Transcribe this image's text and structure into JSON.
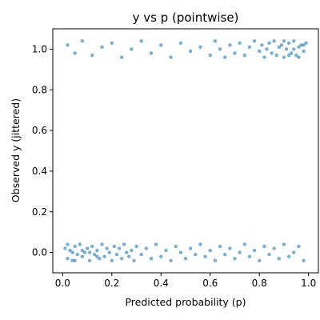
{
  "chart_data": {
    "type": "scatter",
    "title": "y vs p (pointwise)",
    "xlabel": "Predicted probability (p)",
    "ylabel": "Observed y (jittered)",
    "xlim": [
      -0.04,
      1.04
    ],
    "ylim": [
      -0.1,
      1.1
    ],
    "xticks": [
      "0.0",
      "0.2",
      "0.4",
      "0.6",
      "0.8",
      "1.0"
    ],
    "yticks": [
      "0.0",
      "0.2",
      "0.4",
      "0.6",
      "0.8",
      "1.0"
    ],
    "grid": false,
    "marker_color": "#1f77b4",
    "marker_alpha": 0.6,
    "observed_levels": [
      0,
      1
    ],
    "jitter_range": 0.05,
    "points_y0": [
      [
        0.01,
        0.02
      ],
      [
        0.02,
        -0.03
      ],
      [
        0.03,
        0.01
      ],
      [
        0.04,
        -0.04
      ],
      [
        0.05,
        0.03
      ],
      [
        0.06,
        -0.01
      ],
      [
        0.07,
        0.04
      ],
      [
        0.08,
        -0.02
      ],
      [
        0.09,
        0.0
      ],
      [
        0.1,
        0.02
      ],
      [
        0.11,
        -0.04
      ],
      [
        0.12,
        0.03
      ],
      [
        0.13,
        -0.01
      ],
      [
        0.14,
        0.01
      ],
      [
        0.15,
        -0.03
      ],
      [
        0.16,
        0.04
      ],
      [
        0.17,
        -0.02
      ],
      [
        0.18,
        0.02
      ],
      [
        0.19,
        0.0
      ],
      [
        0.2,
        -0.04
      ],
      [
        0.21,
        0.03
      ],
      [
        0.22,
        -0.01
      ],
      [
        0.23,
        0.02
      ],
      [
        0.24,
        -0.03
      ],
      [
        0.25,
        0.04
      ],
      [
        0.26,
        0.0
      ],
      [
        0.27,
        -0.02
      ],
      [
        0.28,
        0.01
      ],
      [
        0.29,
        -0.04
      ],
      [
        0.3,
        0.03
      ],
      [
        0.32,
        -0.01
      ],
      [
        0.34,
        0.02
      ],
      [
        0.36,
        -0.03
      ],
      [
        0.38,
        0.04
      ],
      [
        0.4,
        -0.02
      ],
      [
        0.42,
        0.01
      ],
      [
        0.44,
        -0.04
      ],
      [
        0.46,
        0.03
      ],
      [
        0.48,
        0.0
      ],
      [
        0.5,
        -0.03
      ],
      [
        0.52,
        0.02
      ],
      [
        0.54,
        -0.01
      ],
      [
        0.56,
        0.04
      ],
      [
        0.58,
        -0.02
      ],
      [
        0.6,
        0.01
      ],
      [
        0.62,
        -0.04
      ],
      [
        0.64,
        0.03
      ],
      [
        0.66,
        -0.01
      ],
      [
        0.68,
        0.02
      ],
      [
        0.7,
        -0.03
      ],
      [
        0.72,
        0.0
      ],
      [
        0.74,
        0.04
      ],
      [
        0.76,
        -0.02
      ],
      [
        0.78,
        0.01
      ],
      [
        0.8,
        -0.04
      ],
      [
        0.82,
        0.03
      ],
      [
        0.84,
        -0.01
      ],
      [
        0.86,
        0.02
      ],
      [
        0.88,
        -0.03
      ],
      [
        0.9,
        0.04
      ],
      [
        0.92,
        -0.02
      ],
      [
        0.94,
        0.0
      ],
      [
        0.96,
        0.03
      ],
      [
        0.98,
        -0.04
      ],
      [
        0.02,
        0.04
      ],
      [
        0.05,
        -0.04
      ],
      [
        0.08,
        0.01
      ],
      [
        0.11,
        0.0
      ],
      [
        0.14,
        -0.02
      ],
      [
        0.04,
        0.0
      ]
    ],
    "points_y1": [
      [
        0.02,
        1.02
      ],
      [
        0.05,
        0.98
      ],
      [
        0.08,
        1.04
      ],
      [
        0.12,
        0.97
      ],
      [
        0.16,
        1.01
      ],
      [
        0.2,
        1.03
      ],
      [
        0.24,
        0.96
      ],
      [
        0.28,
        1.0
      ],
      [
        0.32,
        1.04
      ],
      [
        0.36,
        0.98
      ],
      [
        0.4,
        1.02
      ],
      [
        0.44,
        0.96
      ],
      [
        0.48,
        1.03
      ],
      [
        0.52,
        0.99
      ],
      [
        0.56,
        1.01
      ],
      [
        0.6,
        0.97
      ],
      [
        0.62,
        1.04
      ],
      [
        0.64,
        1.0
      ],
      [
        0.66,
        0.96
      ],
      [
        0.68,
        1.02
      ],
      [
        0.7,
        0.98
      ],
      [
        0.72,
        1.03
      ],
      [
        0.74,
        0.97
      ],
      [
        0.76,
        1.01
      ],
      [
        0.78,
        1.04
      ],
      [
        0.8,
        0.99
      ],
      [
        0.81,
        1.02
      ],
      [
        0.82,
        0.96
      ],
      [
        0.83,
        1.0
      ],
      [
        0.84,
        1.03
      ],
      [
        0.85,
        0.98
      ],
      [
        0.86,
        1.04
      ],
      [
        0.87,
        0.97
      ],
      [
        0.88,
        1.01
      ],
      [
        0.89,
        1.02
      ],
      [
        0.9,
        0.96
      ],
      [
        0.91,
        1.0
      ],
      [
        0.92,
        1.03
      ],
      [
        0.93,
        0.98
      ],
      [
        0.94,
        1.04
      ],
      [
        0.95,
        0.97
      ],
      [
        0.96,
        1.01
      ],
      [
        0.97,
        1.02
      ],
      [
        0.98,
        0.99
      ],
      [
        0.99,
        1.03
      ],
      [
        0.9,
        1.04
      ],
      [
        0.92,
        0.97
      ],
      [
        0.94,
        1.0
      ],
      [
        0.96,
        0.96
      ],
      [
        0.98,
        1.02
      ]
    ]
  }
}
